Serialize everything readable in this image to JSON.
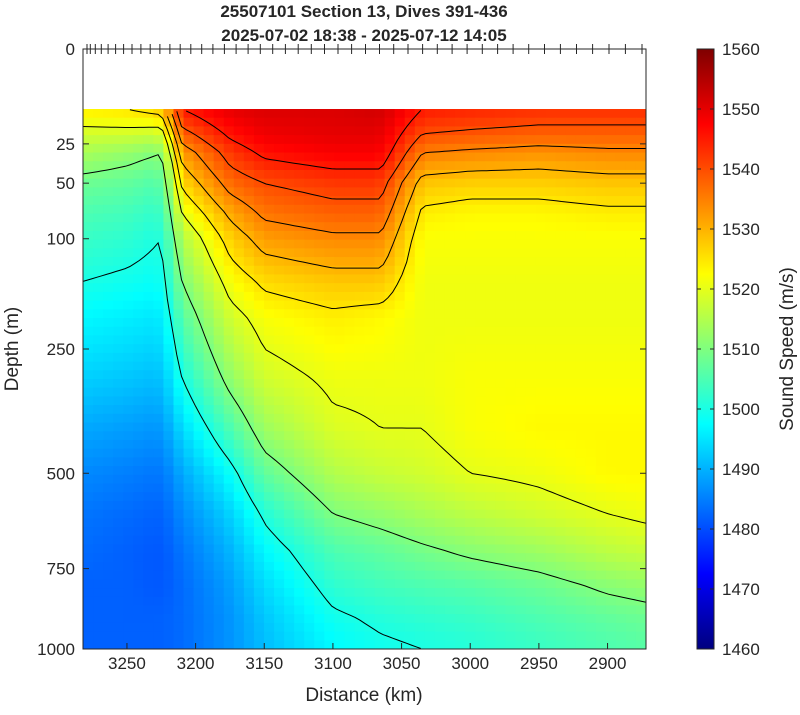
{
  "chart_data": {
    "type": "heatmap",
    "title_lines": [
      "25507101 Section 13, Dives 391-436",
      "2025-07-02 18:38 - 2025-07-12 14:05"
    ],
    "xlabel": "Distance (km)",
    "ylabel": "Depth (m)",
    "colorbar_label": "Sound Speed (m/s)",
    "x_reversed": true,
    "xlim": [
      3282,
      2872
    ],
    "x_ticks": [
      3250,
      3200,
      3150,
      3100,
      3050,
      3000,
      2950,
      2900
    ],
    "y_scale": "sqrt",
    "ylim": [
      0,
      1000
    ],
    "y_ticks": [
      0,
      25,
      50,
      100,
      250,
      500,
      750,
      1000
    ],
    "clim": [
      1460,
      1560
    ],
    "colorbar_ticks": [
      1460,
      1470,
      1480,
      1490,
      1500,
      1510,
      1520,
      1530,
      1540,
      1550,
      1560
    ],
    "colormap": "jet",
    "colormap_stops": [
      "#00007f",
      "#0000ff",
      "#007fff",
      "#00ffff",
      "#7fff7f",
      "#ffff00",
      "#ff7f00",
      "#ff0000",
      "#7f0000"
    ],
    "data_top_depth": 10,
    "contour_color": "#000000",
    "dive_marker_count": 46,
    "profiles": [
      {
        "x": 3282,
        "d": [
          10,
          20,
          30,
          50,
          75,
          100,
          150,
          200,
          300,
          400,
          500,
          600,
          700,
          800,
          900,
          1000
        ],
        "v": [
          1524,
          1518,
          1514,
          1508,
          1505,
          1503,
          1500,
          1497,
          1493,
          1489,
          1486,
          1484,
          1483,
          1482,
          1482,
          1482
        ]
      },
      {
        "x": 3250,
        "d": [
          10,
          20,
          30,
          50,
          75,
          100,
          150,
          200,
          300,
          400,
          500,
          600,
          700,
          800,
          900,
          1000
        ],
        "v": [
          1525,
          1518,
          1512,
          1507,
          1504,
          1502,
          1499,
          1496,
          1492,
          1488,
          1485,
          1483,
          1482,
          1482,
          1482,
          1482
        ]
      },
      {
        "x": 3225,
        "d": [
          10,
          20,
          30,
          50,
          75,
          100,
          150,
          200,
          300,
          400,
          500,
          600,
          700,
          800,
          900,
          1000
        ],
        "v": [
          1527,
          1517,
          1510,
          1505,
          1502,
          1500,
          1498,
          1495,
          1491,
          1487,
          1484,
          1482,
          1481,
          1481,
          1482,
          1482
        ]
      },
      {
        "x": 3210,
        "d": [
          10,
          20,
          30,
          50,
          75,
          100,
          150,
          200,
          300,
          400,
          500,
          600,
          700,
          800,
          900,
          1000
        ],
        "v": [
          1545,
          1538,
          1532,
          1526,
          1520,
          1515,
          1510,
          1506,
          1500,
          1494,
          1489,
          1486,
          1484,
          1483,
          1483,
          1483
        ]
      },
      {
        "x": 3175,
        "d": [
          10,
          20,
          30,
          50,
          75,
          100,
          150,
          200,
          300,
          400,
          500,
          600,
          700,
          800,
          900,
          1000
        ],
        "v": [
          1550,
          1546,
          1542,
          1537,
          1531,
          1527,
          1522,
          1518,
          1512,
          1505,
          1498,
          1493,
          1490,
          1488,
          1487,
          1487
        ]
      },
      {
        "x": 3150,
        "d": [
          10,
          20,
          30,
          50,
          75,
          100,
          150,
          200,
          300,
          400,
          500,
          600,
          700,
          800,
          900,
          1000
        ],
        "v": [
          1551,
          1549,
          1546,
          1540,
          1536,
          1532,
          1526,
          1522,
          1518,
          1513,
          1507,
          1501,
          1497,
          1494,
          1492,
          1491
        ]
      },
      {
        "x": 3100,
        "d": [
          10,
          20,
          30,
          50,
          75,
          100,
          150,
          200,
          300,
          400,
          500,
          600,
          700,
          800,
          900,
          1000
        ],
        "v": [
          1551,
          1550,
          1548,
          1542,
          1538,
          1534,
          1528,
          1524,
          1521,
          1519,
          1515,
          1510,
          1505,
          1502,
          1499,
          1497
        ]
      },
      {
        "x": 3065,
        "d": [
          10,
          20,
          30,
          50,
          75,
          100,
          150,
          200,
          300,
          400,
          500,
          600,
          700,
          800,
          900,
          1000
        ],
        "v": [
          1552,
          1550,
          1548,
          1542,
          1538,
          1534,
          1528,
          1523,
          1521,
          1520,
          1517,
          1512,
          1507,
          1504,
          1501,
          1499
        ]
      },
      {
        "x": 3035,
        "d": [
          10,
          20,
          30,
          50,
          75,
          100,
          150,
          200,
          300,
          400,
          500,
          600,
          700,
          800,
          900,
          1000
        ],
        "v": [
          1545,
          1540,
          1535,
          1528,
          1524,
          1522,
          1521,
          1521,
          1521,
          1520,
          1518,
          1514,
          1509,
          1505,
          1502,
          1500
        ]
      },
      {
        "x": 3000,
        "d": [
          10,
          20,
          30,
          50,
          75,
          100,
          150,
          200,
          300,
          400,
          500,
          600,
          700,
          800,
          900,
          1000
        ],
        "v": [
          1544,
          1539,
          1534,
          1527,
          1523,
          1522,
          1521,
          1521,
          1522,
          1522,
          1520,
          1516,
          1511,
          1506,
          1503,
          1501
        ]
      },
      {
        "x": 2950,
        "d": [
          10,
          20,
          30,
          50,
          75,
          100,
          150,
          200,
          300,
          400,
          500,
          600,
          700,
          800,
          900,
          1000
        ],
        "v": [
          1543,
          1538,
          1533,
          1527,
          1523,
          1522,
          1521,
          1521,
          1522,
          1523,
          1521,
          1518,
          1513,
          1508,
          1505,
          1503
        ]
      },
      {
        "x": 2900,
        "d": [
          10,
          20,
          30,
          50,
          75,
          100,
          150,
          200,
          300,
          400,
          500,
          600,
          700,
          800,
          900,
          1000
        ],
        "v": [
          1543,
          1538,
          1534,
          1528,
          1524,
          1522,
          1521,
          1521,
          1522,
          1523,
          1523,
          1520,
          1516,
          1511,
          1507,
          1505
        ]
      },
      {
        "x": 2872,
        "d": [
          10,
          20,
          30,
          50,
          75,
          100,
          150,
          200,
          300,
          400,
          500,
          600,
          700,
          800,
          900,
          1000
        ],
        "v": [
          1543,
          1538,
          1534,
          1528,
          1524,
          1522,
          1521,
          1521,
          1522,
          1523,
          1523,
          1521,
          1517,
          1512,
          1508,
          1506
        ]
      }
    ],
    "contour_levels": [
      1500,
      1510,
      1520,
      1525,
      1530,
      1535,
      1540,
      1545
    ]
  }
}
